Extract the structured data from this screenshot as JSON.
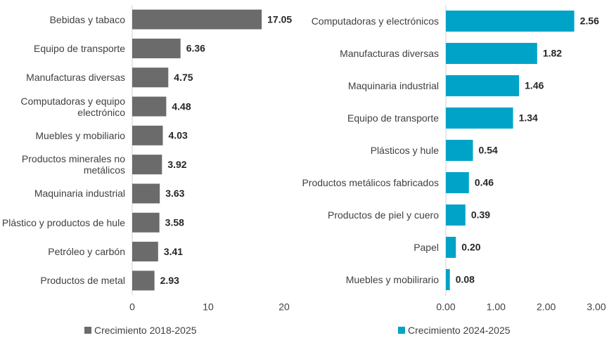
{
  "chart_data": [
    {
      "type": "bar",
      "orientation": "horizontal",
      "categories": [
        "Bebidas y tabaco",
        "Equipo de transporte",
        "Manufacturas diversas",
        "Computadoras y equipo electrónico",
        "Muebles y mobiliario",
        "Productos minerales no metálicos",
        "Maquinaria industrial",
        "Plástico y productos de hule",
        "Petróleo y carbón",
        "Productos de metal"
      ],
      "series": [
        {
          "name": "Crecimiento 2018-2025",
          "color": "#6b6b6b",
          "values": [
            17.05,
            6.36,
            4.75,
            4.48,
            4.03,
            3.92,
            3.63,
            3.58,
            3.41,
            2.93
          ]
        }
      ],
      "xlim": [
        0,
        20
      ],
      "xticks": [
        0,
        10,
        20
      ]
    },
    {
      "type": "bar",
      "orientation": "horizontal",
      "categories": [
        "Computadoras y electrónicos",
        "Manufacturas diversas",
        "Maquinaria industrial",
        "Equipo de transporte",
        "Plásticos y hule",
        "Productos metálicos fabricados",
        "Productos de piel y cuero",
        "Papel",
        "Muebles y mobilirario"
      ],
      "series": [
        {
          "name": "Crecimiento 2024-2025",
          "color": "#00a3c8",
          "values": [
            2.56,
            1.82,
            1.46,
            1.34,
            0.54,
            0.46,
            0.39,
            0.2,
            0.08
          ],
          "value_labels": [
            "2.56",
            "1.82",
            "1.46",
            "1.34",
            "0.54",
            "0.46",
            "0.39",
            "0.20",
            "0.08"
          ]
        }
      ],
      "xlim": [
        0,
        3
      ],
      "xticks": [
        {
          "value": 0,
          "label": "0.00"
        },
        {
          "value": 1,
          "label": "1.00"
        },
        {
          "value": 2,
          "label": "2.00"
        },
        {
          "value": 3,
          "label": "3.00"
        }
      ]
    }
  ]
}
